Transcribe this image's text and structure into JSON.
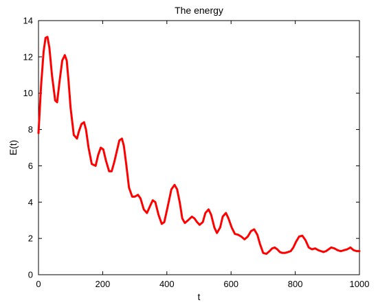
{
  "chart_data": {
    "type": "line",
    "title": "The energy",
    "xlabel": "t",
    "ylabel": "E(t)",
    "xlim": [
      0,
      1000
    ],
    "ylim": [
      0,
      14
    ],
    "xticks": [
      0,
      200,
      400,
      600,
      800,
      1000
    ],
    "yticks": [
      0,
      2,
      4,
      6,
      8,
      10,
      12,
      14
    ],
    "grid": false,
    "legend": "none",
    "series": [
      {
        "color": "#ff0000",
        "x": [
          0,
          8,
          16,
          22,
          28,
          34,
          42,
          52,
          58,
          66,
          74,
          82,
          88,
          94,
          100,
          110,
          120,
          126,
          134,
          142,
          148,
          156,
          166,
          178,
          186,
          194,
          202,
          210,
          220,
          228,
          236,
          244,
          252,
          260,
          266,
          274,
          282,
          292,
          300,
          310,
          318,
          328,
          338,
          348,
          356,
          364,
          374,
          384,
          392,
          402,
          414,
          424,
          432,
          440,
          448,
          456,
          466,
          478,
          486,
          494,
          502,
          512,
          520,
          530,
          538,
          548,
          556,
          566,
          574,
          584,
          592,
          602,
          612,
          622,
          632,
          642,
          652,
          662,
          672,
          682,
          690,
          700,
          710,
          720,
          728,
          736,
          744,
          752,
          760,
          768,
          778,
          786,
          794,
          802,
          812,
          822,
          832,
          842,
          852,
          862,
          872,
          880,
          888,
          896,
          904,
          912,
          922,
          932,
          942,
          952,
          962,
          972,
          982,
          992,
          1000
        ],
        "y": [
          7.8,
          10.4,
          12.3,
          13.05,
          13.1,
          12.5,
          11.0,
          9.6,
          9.5,
          10.7,
          11.8,
          12.1,
          11.8,
          10.6,
          9.2,
          7.7,
          7.5,
          7.9,
          8.3,
          8.4,
          8.0,
          7.0,
          6.1,
          6.0,
          6.6,
          7.0,
          6.9,
          6.3,
          5.7,
          5.7,
          6.2,
          6.8,
          7.4,
          7.5,
          7.1,
          6.0,
          4.8,
          4.3,
          4.3,
          4.4,
          4.2,
          3.6,
          3.4,
          3.8,
          4.1,
          4.0,
          3.3,
          2.8,
          2.9,
          3.7,
          4.7,
          4.95,
          4.7,
          4.0,
          3.1,
          2.85,
          3.0,
          3.2,
          3.1,
          2.9,
          2.75,
          2.9,
          3.4,
          3.6,
          3.3,
          2.6,
          2.3,
          2.6,
          3.2,
          3.4,
          3.1,
          2.6,
          2.25,
          2.2,
          2.1,
          1.95,
          2.1,
          2.4,
          2.5,
          2.2,
          1.7,
          1.2,
          1.15,
          1.3,
          1.45,
          1.5,
          1.4,
          1.25,
          1.2,
          1.2,
          1.25,
          1.3,
          1.5,
          1.8,
          2.1,
          2.15,
          1.9,
          1.5,
          1.4,
          1.45,
          1.35,
          1.3,
          1.25,
          1.3,
          1.4,
          1.5,
          1.45,
          1.35,
          1.3,
          1.35,
          1.4,
          1.5,
          1.35,
          1.3,
          1.3
        ]
      }
    ]
  }
}
